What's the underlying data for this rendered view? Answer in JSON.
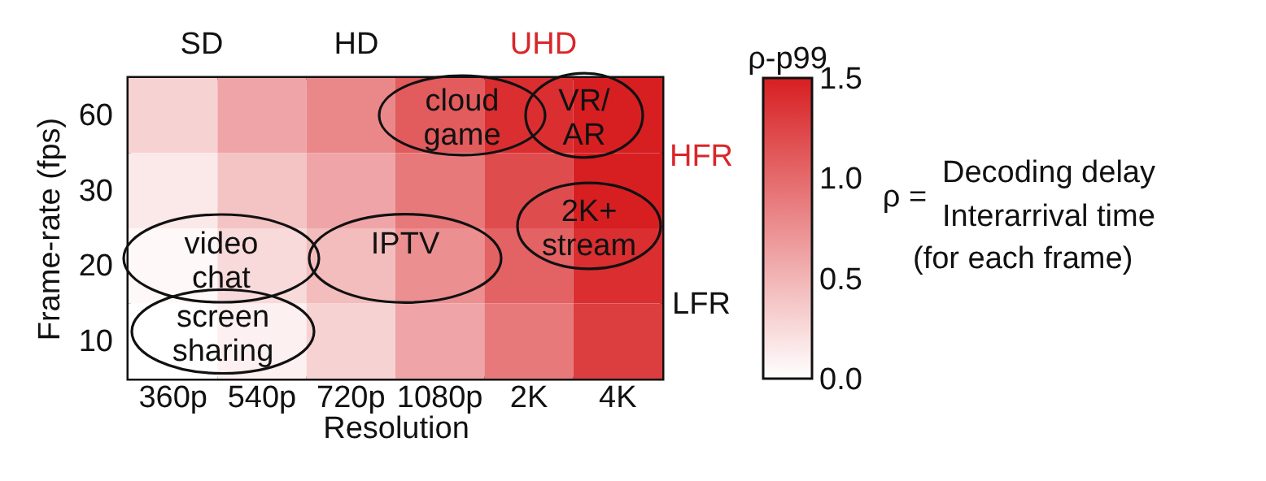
{
  "chart_data": {
    "type": "heatmap",
    "xlabel": "Resolution",
    "ylabel": "Frame-rate (fps)",
    "clabel": "ρ-p99",
    "categories": [
      "360p",
      "540p",
      "720p",
      "1080p",
      "2K",
      "4K"
    ],
    "y_categories": [
      "60",
      "30",
      "20",
      "10"
    ],
    "cells": [
      [
        0.3,
        0.6,
        0.8,
        1.1,
        1.4,
        1.5
      ],
      [
        0.15,
        0.4,
        0.6,
        0.9,
        1.2,
        1.5
      ],
      [
        0.05,
        0.25,
        0.45,
        0.75,
        1.05,
        1.4
      ],
      [
        0.0,
        0.1,
        0.3,
        0.6,
        0.9,
        1.3
      ]
    ],
    "clim": [
      0,
      1.5
    ],
    "cticks": [
      {
        "value": 0,
        "label": "0.0"
      },
      {
        "value": 0.5,
        "label": "0.5"
      },
      {
        "value": 1,
        "label": "1.0"
      },
      {
        "value": 1.5,
        "label": "1.5"
      }
    ],
    "annotations": [
      "SD",
      "HD",
      "UHD",
      "HFR",
      "LFR",
      "cloud game",
      "VR/AR",
      "2K+ stream",
      "video chat",
      "IPTV",
      "screen sharing",
      "ρ =",
      "Decoding delay",
      "Interarrival time",
      "(for each frame)"
    ]
  }
}
